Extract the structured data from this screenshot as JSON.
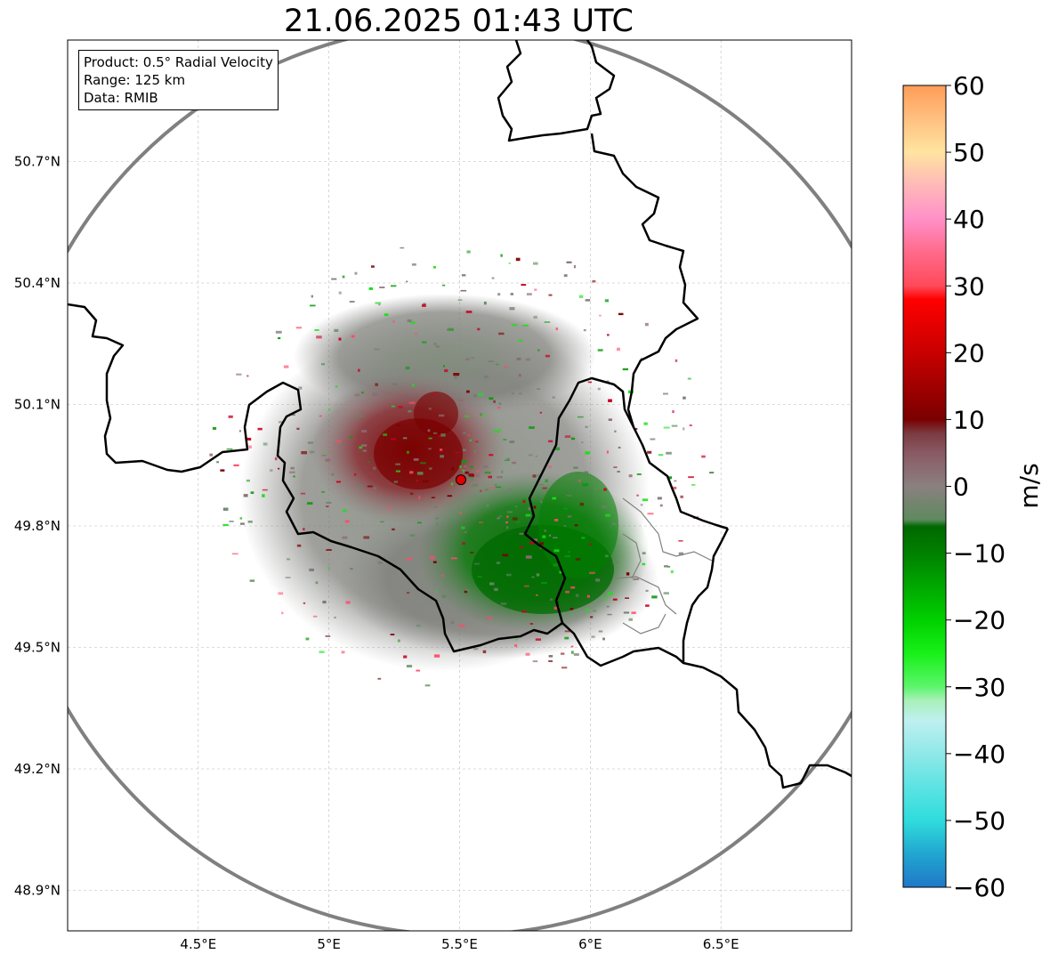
{
  "title": "21.06.2025 01:43 UTC",
  "info": {
    "product": "Product: 0.5° Radial Velocity",
    "range": "Range: 125 km",
    "data": "Data: RMIB"
  },
  "map": {
    "lon_range": [
      4.0,
      7.0
    ],
    "lat_range": [
      48.8,
      51.0
    ],
    "lon_ticks": [
      {
        "value": 4.5,
        "label": "4.5°E"
      },
      {
        "value": 5.0,
        "label": "5°E"
      },
      {
        "value": 5.5,
        "label": "5.5°E"
      },
      {
        "value": 6.0,
        "label": "6°E"
      },
      {
        "value": 6.5,
        "label": "6.5°E"
      }
    ],
    "lat_ticks": [
      {
        "value": 50.7,
        "label": "50.7°N"
      },
      {
        "value": 50.4,
        "label": "50.4°N"
      },
      {
        "value": 50.1,
        "label": "50.1°N"
      },
      {
        "value": 49.8,
        "label": "49.8°N"
      },
      {
        "value": 49.5,
        "label": "49.5°N"
      },
      {
        "value": 49.2,
        "label": "49.2°N"
      },
      {
        "value": 48.9,
        "label": "48.9°N"
      }
    ],
    "radar_site": {
      "lon": 5.505,
      "lat": 49.914
    },
    "range_km": 125,
    "colors": {
      "range_ring": "#808080",
      "border": "#000000",
      "site_marker": "#e00000",
      "grid": "#bbbbbb"
    }
  },
  "colorbar": {
    "label": "m/s",
    "min": -60,
    "max": 60,
    "ticks": [
      {
        "value": 60,
        "label": "60"
      },
      {
        "value": 50,
        "label": "50"
      },
      {
        "value": 40,
        "label": "40"
      },
      {
        "value": 30,
        "label": "30"
      },
      {
        "value": 20,
        "label": "20"
      },
      {
        "value": 10,
        "label": "10"
      },
      {
        "value": 0,
        "label": "0"
      },
      {
        "value": -10,
        "label": "−10"
      },
      {
        "value": -20,
        "label": "−20"
      },
      {
        "value": -30,
        "label": "−30"
      },
      {
        "value": -40,
        "label": "−40"
      },
      {
        "value": -50,
        "label": "−50"
      },
      {
        "value": -60,
        "label": "−60"
      }
    ],
    "stops": [
      {
        "value": -60,
        "color": "#1f78c8"
      },
      {
        "value": -55,
        "color": "#21a6d0"
      },
      {
        "value": -50,
        "color": "#2fdcdc"
      },
      {
        "value": -45,
        "color": "#5ce3e3"
      },
      {
        "value": -40,
        "color": "#90e8e8"
      },
      {
        "value": -35,
        "color": "#bff0f0"
      },
      {
        "value": -32,
        "color": "#a8f0b8"
      },
      {
        "value": -30,
        "color": "#5cf56c"
      },
      {
        "value": -25,
        "color": "#18f018"
      },
      {
        "value": -20,
        "color": "#00d000"
      },
      {
        "value": -15,
        "color": "#00a800"
      },
      {
        "value": -10,
        "color": "#008000"
      },
      {
        "value": -6,
        "color": "#006800"
      },
      {
        "value": -5,
        "color": "#5e8a5e"
      },
      {
        "value": 0,
        "color": "#8a8080"
      },
      {
        "value": 5,
        "color": "#8a5a64"
      },
      {
        "value": 8,
        "color": "#7a3a40"
      },
      {
        "value": 10,
        "color": "#7a0000"
      },
      {
        "value": 20,
        "color": "#c80000"
      },
      {
        "value": 28,
        "color": "#ff0000"
      },
      {
        "value": 30,
        "color": "#ff4a5a"
      },
      {
        "value": 35,
        "color": "#ff6a8a"
      },
      {
        "value": 40,
        "color": "#ff90c8"
      },
      {
        "value": 45,
        "color": "#ffb8b8"
      },
      {
        "value": 50,
        "color": "#ffe4a0"
      },
      {
        "value": 55,
        "color": "#ffc080"
      },
      {
        "value": 60,
        "color": "#ff9c58"
      }
    ]
  }
}
